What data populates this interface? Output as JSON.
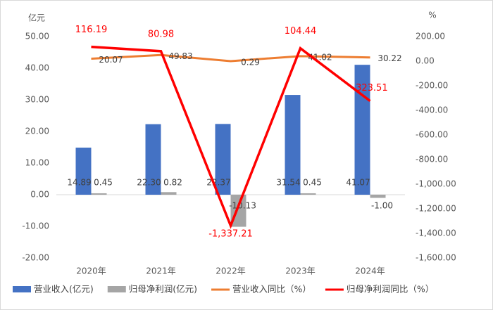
{
  "chart_data": {
    "type": "bar-line",
    "y_label": "亿元",
    "y2_label": "%",
    "categories": [
      "2020年",
      "2021年",
      "2022年",
      "2023年",
      "2024年"
    ],
    "series": [
      {
        "name": "营业收入(亿元)",
        "color": "#4472c4",
        "type": "bar",
        "values": [
          14.89,
          22.3,
          22.37,
          31.54,
          41.07
        ],
        "value_labels": [
          "14.89",
          "22.30",
          "22.37",
          "31.54",
          "41.07"
        ]
      },
      {
        "name": "归母净利润(亿元)",
        "color": "#a5a5a5",
        "type": "bar",
        "values": [
          0.45,
          0.82,
          -10.13,
          0.45,
          -1.0
        ],
        "value_labels": [
          "0.45",
          "0.82",
          "-10.13",
          "0.45",
          "-1.00"
        ]
      },
      {
        "name": "营业收入同比（%）",
        "color": "#ed7d31",
        "type": "line",
        "axis": "y2",
        "values": [
          20.07,
          49.83,
          0.29,
          41.02,
          30.22
        ],
        "value_labels": [
          "20.07",
          "49.83",
          "0.29",
          "41.02",
          "30.22"
        ]
      },
      {
        "name": "归母净利润同比（%）",
        "color": "#ff0000",
        "type": "line",
        "axis": "y2",
        "values": [
          116.19,
          80.98,
          -1337.21,
          104.44,
          -323.51
        ],
        "value_labels": [
          "116.19",
          "80.98",
          "-1,337.21",
          "104.44",
          "-323.51"
        ]
      }
    ],
    "ylim": [
      -20,
      50
    ],
    "yticks": [
      {
        "value": -20,
        "label": "-20.00"
      },
      {
        "value": -10,
        "label": "-10.00"
      },
      {
        "value": 0,
        "label": "0.00"
      },
      {
        "value": 10,
        "label": "10.00"
      },
      {
        "value": 20,
        "label": "20.00"
      },
      {
        "value": 30,
        "label": "30.00"
      },
      {
        "value": 40,
        "label": "40.00"
      },
      {
        "value": 50,
        "label": "50.00"
      }
    ],
    "y2lim": [
      -1600,
      200
    ],
    "y2ticks": [
      {
        "value": -1600,
        "label": "-1,600.00"
      },
      {
        "value": -1400,
        "label": "-1,400.00"
      },
      {
        "value": -1200,
        "label": "-1,200.00"
      },
      {
        "value": -1000,
        "label": "-1,000.00"
      },
      {
        "value": -800,
        "label": "-800.00"
      },
      {
        "value": -600,
        "label": "-600.00"
      },
      {
        "value": -400,
        "label": "-400.00"
      },
      {
        "value": -200,
        "label": "-200.00"
      },
      {
        "value": 0,
        "label": "0.00"
      },
      {
        "value": 200,
        "label": "200.00"
      }
    ],
    "legend": "bottom",
    "grid": false
  }
}
